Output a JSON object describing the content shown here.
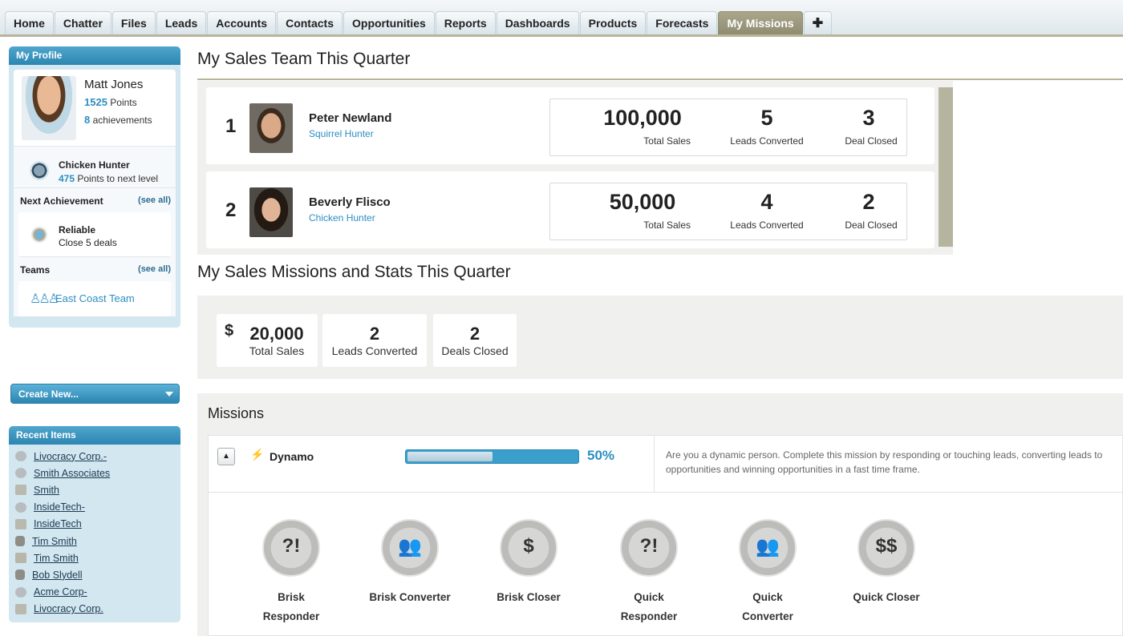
{
  "tabs": [
    "Home",
    "Chatter",
    "Files",
    "Leads",
    "Accounts",
    "Contacts",
    "Opportunities",
    "Reports",
    "Dashboards",
    "Products",
    "Forecasts",
    "My Missions"
  ],
  "tab_active": "My Missions",
  "tab_plus": "✚",
  "profile": {
    "header": "My Profile",
    "name": "Matt Jones",
    "points": "1525",
    "points_label": "Points",
    "achievements": "8",
    "achievements_label": "achievements",
    "level_name": "Chicken Hunter",
    "level_points": "475",
    "level_points_label": "Points to next level",
    "next_achievement_label": "Next Achievement",
    "see_all": "(see all)",
    "next_achievement_name": "Reliable",
    "next_achievement_desc": "Close 5 deals",
    "teams_label": "Teams",
    "team_name": "East Coast Team"
  },
  "create_new": "Create New...",
  "recent": {
    "header": "Recent Items",
    "items": [
      {
        "label": "Livocracy Corp.-",
        "icon": "opportunity-icon"
      },
      {
        "label": "Smith Associates",
        "icon": "opportunity-icon"
      },
      {
        "label": "Smith",
        "icon": "account-icon"
      },
      {
        "label": "InsideTech-",
        "icon": "opportunity-icon"
      },
      {
        "label": "InsideTech",
        "icon": "account-icon"
      },
      {
        "label": "Tim Smith",
        "icon": "lead-icon"
      },
      {
        "label": "Tim Smith",
        "icon": "contact-icon"
      },
      {
        "label": "Bob Slydell",
        "icon": "lead-icon"
      },
      {
        "label": "Acme Corp-",
        "icon": "opportunity-icon"
      },
      {
        "label": "Livocracy Corp.",
        "icon": "account-icon"
      }
    ]
  },
  "team_section": {
    "title": "My Sales Team This Quarter",
    "reps": [
      {
        "rank": "1",
        "name": "Peter Newland",
        "level": "Squirrel Hunter",
        "total_sales": "100,000",
        "leads_converted": "5",
        "deals_closed": "3"
      },
      {
        "rank": "2",
        "name": "Beverly Flisco",
        "level": "Chicken Hunter",
        "total_sales": "50,000",
        "leads_converted": "4",
        "deals_closed": "2"
      }
    ],
    "labels": {
      "total_sales": "Total Sales",
      "leads_converted": "Leads Converted",
      "deals_closed": "Deal Closed"
    }
  },
  "missions_stats": {
    "title": "My Sales Missions and Stats This Quarter",
    "currency": "$",
    "total_sales": "20,000",
    "total_sales_label": "Total Sales",
    "leads_converted": "2",
    "leads_converted_label": "Leads Converted",
    "deals_closed": "2",
    "deals_closed_label": "Deals Closed"
  },
  "missions": {
    "title": "Missions",
    "mission": {
      "name": "Dynamo",
      "progress": 0.5,
      "progress_label": "50%",
      "description": "Are you a dynamic person. Complete this mission by responding or touching leads, converting leads to opportunities and winning opportunities in a fast time frame."
    },
    "badges": [
      {
        "name": "Brisk Responder",
        "glyph": "?!"
      },
      {
        "name": "Brisk Converter",
        "glyph": "👥"
      },
      {
        "name": "Brisk Closer",
        "glyph": "$"
      },
      {
        "name": "Quick Responder",
        "glyph": "?!"
      },
      {
        "name": "Quick Converter",
        "glyph": "👥"
      },
      {
        "name": "Quick Closer",
        "glyph": "$$"
      }
    ]
  },
  "colors": {
    "accent": "#2c8ec3",
    "header_blue": "#2c86b1",
    "tab_active": "#8f8c72"
  }
}
